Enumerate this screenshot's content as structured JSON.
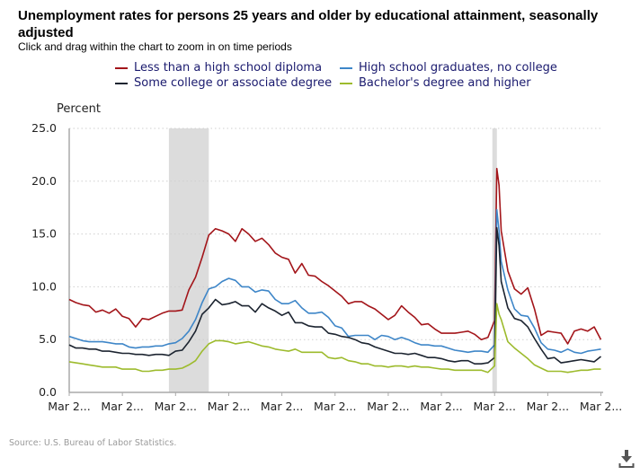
{
  "chart_data": {
    "type": "line",
    "title": "Unemployment rates for persons 25 years and older by educational attainment, seasonally adjusted",
    "subtitle": "Click and drag within the chart to zoom in on time periods",
    "ylabel": "Percent",
    "xlabel": "",
    "ylim": [
      0,
      25
    ],
    "xlim": [
      "2004-03",
      "2024-04"
    ],
    "y_ticks": [
      "0.0",
      "5.0",
      "10.0",
      "15.0",
      "20.0",
      "25.0"
    ],
    "x_ticks": [
      {
        "date": "2004-03",
        "label": "Mar 2..."
      },
      {
        "date": "2006-03",
        "label": "Mar 2..."
      },
      {
        "date": "2008-03",
        "label": "Mar 2..."
      },
      {
        "date": "2010-03",
        "label": "Mar 2..."
      },
      {
        "date": "2012-03",
        "label": "Mar 2..."
      },
      {
        "date": "2014-03",
        "label": "Mar 2..."
      },
      {
        "date": "2016-03",
        "label": "Mar 2..."
      },
      {
        "date": "2018-03",
        "label": "Mar 2..."
      },
      {
        "date": "2020-03",
        "label": "Mar 2..."
      },
      {
        "date": "2022-03",
        "label": "Mar 2..."
      },
      {
        "date": "2024-03",
        "label": "Mar 2..."
      }
    ],
    "grid": "horizontal dotted",
    "legend_placement": "top",
    "recessions": [
      [
        "2007-12",
        "2009-06"
      ],
      [
        "2020-02",
        "2020-04"
      ]
    ],
    "x": [
      "2004-03",
      "2004-06",
      "2004-09",
      "2004-12",
      "2005-03",
      "2005-06",
      "2005-09",
      "2005-12",
      "2006-03",
      "2006-06",
      "2006-09",
      "2006-12",
      "2007-03",
      "2007-06",
      "2007-09",
      "2007-12",
      "2008-03",
      "2008-06",
      "2008-09",
      "2008-12",
      "2009-03",
      "2009-06",
      "2009-09",
      "2009-12",
      "2010-03",
      "2010-06",
      "2010-09",
      "2010-12",
      "2011-03",
      "2011-06",
      "2011-09",
      "2011-12",
      "2012-03",
      "2012-06",
      "2012-09",
      "2012-12",
      "2013-03",
      "2013-06",
      "2013-09",
      "2013-12",
      "2014-03",
      "2014-06",
      "2014-09",
      "2014-12",
      "2015-03",
      "2015-06",
      "2015-09",
      "2015-12",
      "2016-03",
      "2016-06",
      "2016-09",
      "2016-12",
      "2017-03",
      "2017-06",
      "2017-09",
      "2017-12",
      "2018-03",
      "2018-06",
      "2018-09",
      "2018-12",
      "2019-03",
      "2019-06",
      "2019-09",
      "2019-12",
      "2020-03",
      "2020-04",
      "2020-05",
      "2020-06",
      "2020-09",
      "2020-12",
      "2021-03",
      "2021-06",
      "2021-09",
      "2021-12",
      "2022-03",
      "2022-06",
      "2022-09",
      "2022-12",
      "2023-03",
      "2023-06",
      "2023-09",
      "2023-12",
      "2024-03"
    ],
    "series": [
      {
        "name": "Less than a high school diploma",
        "color": "#a3151a",
        "values": [
          8.8,
          8.5,
          8.3,
          8.2,
          7.6,
          7.8,
          7.5,
          7.9,
          7.2,
          7.0,
          6.2,
          7.0,
          6.9,
          7.2,
          7.5,
          7.7,
          7.7,
          7.8,
          9.7,
          10.9,
          12.8,
          14.9,
          15.5,
          15.3,
          15.0,
          14.3,
          15.5,
          15.0,
          14.3,
          14.6,
          14.0,
          13.2,
          12.8,
          12.6,
          11.3,
          12.2,
          11.1,
          11.0,
          10.5,
          10.1,
          9.6,
          9.1,
          8.4,
          8.6,
          8.6,
          8.2,
          7.9,
          7.4,
          6.9,
          7.3,
          8.2,
          7.6,
          7.1,
          6.4,
          6.5,
          6.0,
          5.6,
          5.6,
          5.6,
          5.7,
          5.8,
          5.5,
          5.0,
          5.2,
          6.8,
          21.2,
          19.6,
          15.3,
          11.5,
          9.8,
          9.3,
          9.9,
          7.9,
          5.4,
          5.8,
          5.7,
          5.6,
          4.6,
          5.8,
          6.0,
          5.8,
          6.2,
          5.0
        ]
      },
      {
        "name": "High school graduates, no college",
        "color": "#3e86c8",
        "values": [
          5.3,
          5.1,
          4.9,
          4.8,
          4.8,
          4.8,
          4.7,
          4.6,
          4.6,
          4.3,
          4.2,
          4.3,
          4.3,
          4.4,
          4.4,
          4.6,
          4.7,
          5.1,
          5.8,
          6.9,
          8.5,
          9.8,
          10.0,
          10.5,
          10.8,
          10.6,
          10.0,
          10.0,
          9.5,
          9.7,
          9.6,
          8.8,
          8.4,
          8.4,
          8.7,
          8.0,
          7.5,
          7.5,
          7.6,
          7.1,
          6.3,
          6.1,
          5.3,
          5.4,
          5.4,
          5.4,
          5.0,
          5.4,
          5.3,
          5.0,
          5.2,
          5.0,
          4.7,
          4.5,
          4.5,
          4.4,
          4.4,
          4.2,
          4.0,
          3.9,
          3.8,
          3.9,
          3.9,
          3.8,
          4.5,
          17.3,
          15.3,
          12.4,
          9.7,
          7.9,
          7.3,
          7.2,
          6.1,
          4.7,
          4.1,
          4.0,
          3.8,
          4.1,
          3.8,
          3.7,
          3.9,
          4.0,
          4.1
        ]
      },
      {
        "name": "Some college or associate degree",
        "color": "#1c2430",
        "values": [
          4.5,
          4.2,
          4.2,
          4.1,
          4.1,
          3.9,
          3.9,
          3.8,
          3.7,
          3.7,
          3.6,
          3.6,
          3.5,
          3.6,
          3.6,
          3.5,
          3.9,
          4.0,
          4.8,
          5.8,
          7.4,
          8.0,
          8.8,
          8.3,
          8.4,
          8.6,
          8.2,
          8.2,
          7.6,
          8.4,
          8.0,
          7.7,
          7.3,
          7.6,
          6.6,
          6.6,
          6.3,
          6.2,
          6.2,
          5.6,
          5.5,
          5.3,
          5.2,
          5.0,
          4.7,
          4.6,
          4.3,
          4.1,
          3.9,
          3.7,
          3.7,
          3.6,
          3.7,
          3.5,
          3.3,
          3.3,
          3.2,
          3.0,
          2.9,
          3.0,
          3.0,
          2.7,
          2.7,
          2.8,
          3.3,
          15.6,
          13.9,
          10.5,
          8.0,
          7.0,
          6.8,
          6.2,
          5.1,
          4.1,
          3.2,
          3.3,
          2.8,
          2.9,
          3.0,
          3.1,
          3.0,
          2.9,
          3.4
        ]
      },
      {
        "name": "Bachelor's degree and higher",
        "color": "#9dbb2d",
        "values": [
          2.9,
          2.8,
          2.7,
          2.6,
          2.5,
          2.4,
          2.4,
          2.4,
          2.2,
          2.2,
          2.2,
          2.0,
          2.0,
          2.1,
          2.1,
          2.2,
          2.2,
          2.3,
          2.6,
          3.0,
          3.9,
          4.6,
          4.9,
          4.9,
          4.8,
          4.6,
          4.7,
          4.8,
          4.6,
          4.4,
          4.3,
          4.1,
          4.0,
          3.9,
          4.1,
          3.8,
          3.8,
          3.8,
          3.8,
          3.3,
          3.2,
          3.3,
          3.0,
          2.9,
          2.7,
          2.7,
          2.5,
          2.5,
          2.4,
          2.5,
          2.5,
          2.4,
          2.5,
          2.4,
          2.4,
          2.3,
          2.2,
          2.2,
          2.1,
          2.1,
          2.1,
          2.1,
          2.1,
          1.9,
          2.5,
          8.4,
          7.4,
          6.9,
          4.8,
          4.2,
          3.7,
          3.2,
          2.6,
          2.3,
          2.0,
          2.0,
          2.0,
          1.9,
          2.0,
          2.1,
          2.1,
          2.2,
          2.2
        ]
      }
    ],
    "source": "Source: U.S. Bureau of Labor Statistics."
  },
  "icons": {
    "download": "download-icon"
  }
}
